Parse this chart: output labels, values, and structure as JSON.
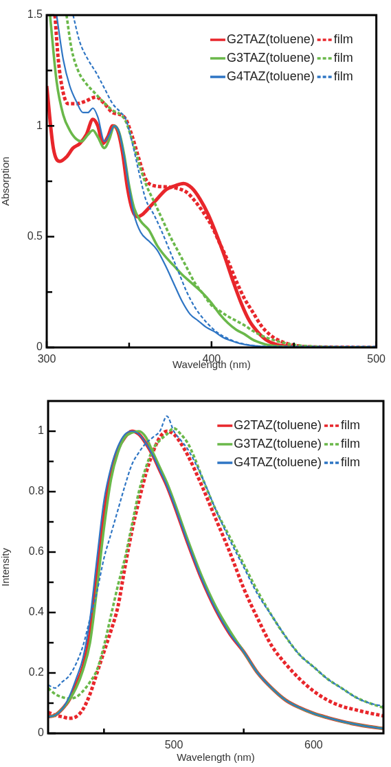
{
  "chart_data": [
    {
      "type": "line",
      "xlabel": "Wavelength (nm)",
      "ylabel": "Absorption",
      "xlim": [
        300,
        500
      ],
      "ylim": [
        0,
        1.5
      ],
      "xticks": [
        300,
        {
          "value": 350,
          "label": null
        },
        400,
        {
          "value": 450,
          "label": null
        },
        500
      ],
      "yticks": [
        0,
        {
          "value": 0.25,
          "label": null
        },
        0.5,
        {
          "value": 0.75,
          "label": null
        },
        1,
        {
          "value": 1.25,
          "label": null
        },
        1.5
      ],
      "legend": "top right",
      "series": [
        {
          "name": "G2TAZ(toluene)",
          "color": "#e8262b",
          "line_style": "solid",
          "x": [
            300,
            304,
            308,
            312,
            316,
            320,
            324,
            328,
            331,
            334,
            337,
            340,
            343,
            346,
            349,
            352,
            355,
            358,
            362,
            367,
            372,
            378,
            383,
            388,
            393,
            398,
            403,
            408,
            413,
            418,
            423,
            428,
            433,
            440,
            450
          ],
          "values": [
            1.18,
            0.9,
            0.84,
            0.86,
            0.9,
            0.92,
            0.96,
            1.03,
            1.0,
            0.92,
            0.95,
            1.0,
            0.98,
            0.88,
            0.72,
            0.62,
            0.59,
            0.6,
            0.63,
            0.67,
            0.71,
            0.73,
            0.74,
            0.72,
            0.67,
            0.6,
            0.51,
            0.41,
            0.3,
            0.2,
            0.12,
            0.07,
            0.035,
            0.012,
            0.003
          ]
        },
        {
          "name": "film",
          "color": "#e8262b",
          "line_style": "dashed",
          "x": [
            305,
            307,
            310,
            313,
            318,
            323,
            330,
            335,
            340,
            345,
            348,
            352,
            356,
            360,
            365,
            372,
            378,
            385,
            390,
            395,
            400,
            405,
            410,
            415,
            420,
            425,
            430,
            435,
            440,
            450,
            460,
            500
          ],
          "values": [
            1.5,
            1.3,
            1.15,
            1.1,
            1.1,
            1.11,
            1.13,
            1.1,
            1.06,
            1.05,
            1.03,
            0.95,
            0.85,
            0.76,
            0.73,
            0.725,
            0.72,
            0.7,
            0.66,
            0.61,
            0.55,
            0.47,
            0.39,
            0.3,
            0.22,
            0.16,
            0.1,
            0.06,
            0.035,
            0.01,
            0.003,
            0
          ]
        },
        {
          "name": "G3TAZ(toluene)",
          "color": "#6ab84a",
          "line_style": "solid",
          "x": [
            302,
            306,
            310,
            314,
            318,
            321,
            325,
            328,
            331,
            335,
            338,
            341,
            344,
            347,
            350,
            353,
            357,
            362,
            367,
            372,
            377,
            382,
            388,
            394,
            400,
            405,
            410,
            415,
            420,
            425,
            430,
            435,
            445,
            500
          ],
          "values": [
            1.5,
            1.2,
            1.05,
            0.98,
            0.94,
            0.93,
            0.96,
            0.98,
            0.95,
            0.9,
            0.94,
            1.0,
            0.97,
            0.87,
            0.73,
            0.63,
            0.57,
            0.53,
            0.46,
            0.41,
            0.37,
            0.33,
            0.29,
            0.25,
            0.2,
            0.15,
            0.11,
            0.08,
            0.06,
            0.035,
            0.02,
            0.01,
            0.003,
            0
          ]
        },
        {
          "name": "film",
          "color": "#6ab84a",
          "line_style": "dashed",
          "x": [
            312,
            315,
            319,
            324,
            329,
            334,
            340,
            345,
            348,
            352,
            356,
            360,
            365,
            370,
            375,
            380,
            385,
            390,
            395,
            400,
            405,
            410,
            415,
            420,
            425,
            430,
            435,
            440,
            450,
            460,
            470,
            500
          ],
          "values": [
            1.5,
            1.35,
            1.25,
            1.19,
            1.15,
            1.11,
            1.07,
            1.05,
            1.02,
            0.93,
            0.83,
            0.74,
            0.66,
            0.58,
            0.5,
            0.43,
            0.36,
            0.29,
            0.24,
            0.19,
            0.165,
            0.14,
            0.12,
            0.1,
            0.075,
            0.055,
            0.04,
            0.028,
            0.012,
            0.005,
            0.002,
            0
          ]
        },
        {
          "name": "G4TAZ(toluene)",
          "color": "#2e75c4",
          "line_style": "solid",
          "x": [
            306,
            310,
            314,
            318,
            322,
            325,
            328,
            331,
            335,
            338,
            341,
            344,
            347,
            350,
            353,
            357,
            362,
            367,
            372,
            377,
            382,
            387,
            392,
            397,
            402,
            407,
            412,
            417,
            425,
            435,
            450,
            500
          ],
          "values": [
            1.5,
            1.3,
            1.18,
            1.11,
            1.06,
            1.06,
            1.08,
            1.04,
            0.93,
            0.96,
            1.0,
            0.97,
            0.86,
            0.72,
            0.6,
            0.52,
            0.48,
            0.44,
            0.37,
            0.29,
            0.21,
            0.15,
            0.12,
            0.09,
            0.07,
            0.045,
            0.03,
            0.018,
            0.008,
            0.002,
            0,
            0
          ]
        },
        {
          "name": "film",
          "color": "#2e75c4",
          "line_style": "dashed",
          "x": [
            316,
            320,
            325,
            330,
            335,
            340,
            345,
            348,
            352,
            356,
            360,
            365,
            370,
            375,
            380,
            385,
            390,
            395,
            400,
            405,
            410,
            415,
            420,
            430,
            440,
            500
          ],
          "values": [
            1.5,
            1.38,
            1.3,
            1.24,
            1.17,
            1.1,
            1.06,
            1.03,
            0.92,
            0.79,
            0.67,
            0.6,
            0.52,
            0.43,
            0.34,
            0.25,
            0.18,
            0.13,
            0.09,
            0.06,
            0.04,
            0.025,
            0.015,
            0.005,
            0.004,
            0.004
          ]
        }
      ]
    },
    {
      "type": "line",
      "xlabel": "Wavelength (nm)",
      "ylabel": "Intensity",
      "xlim": [
        410,
        650
      ],
      "ylim": [
        0,
        1.1
      ],
      "xticks": [
        {
          "value": 450,
          "label": null
        },
        500,
        {
          "value": 550,
          "label": null
        },
        600
      ],
      "yticks": [
        0,
        {
          "value": 0.1,
          "label": null
        },
        0.2,
        {
          "value": 0.3,
          "label": null
        },
        0.4,
        {
          "value": 0.5,
          "label": null
        },
        0.6,
        {
          "value": 0.7,
          "label": null
        },
        0.8,
        {
          "value": 0.9,
          "label": null
        },
        1
      ],
      "legend": "top right",
      "series": [
        {
          "name": "G2TAZ(toluene)",
          "color": "#e8262b",
          "line_style": "solid",
          "x": [
            410,
            415,
            420,
            425,
            430,
            435,
            440,
            445,
            450,
            455,
            460,
            465,
            470,
            475,
            480,
            485,
            490,
            495,
            500,
            510,
            520,
            530,
            540,
            550,
            560,
            570,
            580,
            590,
            600,
            610,
            620,
            630,
            640,
            650
          ],
          "values": [
            0.055,
            0.06,
            0.08,
            0.11,
            0.16,
            0.22,
            0.33,
            0.52,
            0.72,
            0.86,
            0.94,
            0.98,
            1.0,
            0.99,
            0.96,
            0.92,
            0.87,
            0.82,
            0.76,
            0.63,
            0.51,
            0.41,
            0.33,
            0.27,
            0.2,
            0.15,
            0.11,
            0.085,
            0.066,
            0.052,
            0.04,
            0.03,
            0.022,
            0.016
          ]
        },
        {
          "name": "film",
          "color": "#e8262b",
          "line_style": "dashed",
          "x": [
            410,
            415,
            420,
            425,
            430,
            435,
            440,
            445,
            450,
            455,
            460,
            465,
            470,
            475,
            480,
            485,
            490,
            495,
            500,
            505,
            510,
            520,
            530,
            540,
            550,
            560,
            570,
            580,
            590,
            600,
            610,
            620,
            630,
            640,
            650
          ],
          "values": [
            0.07,
            0.06,
            0.055,
            0.05,
            0.055,
            0.08,
            0.13,
            0.2,
            0.27,
            0.34,
            0.42,
            0.55,
            0.67,
            0.77,
            0.86,
            0.93,
            0.98,
            1.0,
            0.99,
            0.96,
            0.92,
            0.82,
            0.71,
            0.6,
            0.48,
            0.38,
            0.29,
            0.23,
            0.18,
            0.14,
            0.11,
            0.09,
            0.078,
            0.067,
            0.058
          ]
        },
        {
          "name": "G3TAZ(toluene)",
          "color": "#6ab84a",
          "line_style": "solid",
          "x": [
            410,
            415,
            420,
            425,
            430,
            435,
            440,
            445,
            450,
            455,
            460,
            465,
            470,
            475,
            480,
            485,
            490,
            495,
            500,
            510,
            520,
            530,
            540,
            550,
            560,
            570,
            580,
            590,
            600,
            610,
            620,
            630,
            640,
            650
          ],
          "values": [
            0.055,
            0.06,
            0.08,
            0.11,
            0.15,
            0.21,
            0.3,
            0.48,
            0.68,
            0.84,
            0.93,
            0.98,
            0.995,
            1.0,
            0.98,
            0.93,
            0.88,
            0.83,
            0.77,
            0.64,
            0.52,
            0.42,
            0.34,
            0.27,
            0.2,
            0.15,
            0.11,
            0.085,
            0.066,
            0.052,
            0.04,
            0.03,
            0.022,
            0.016
          ]
        },
        {
          "name": "film",
          "color": "#6ab84a",
          "line_style": "dashed",
          "x": [
            410,
            415,
            420,
            425,
            430,
            435,
            440,
            445,
            450,
            455,
            460,
            465,
            470,
            475,
            480,
            485,
            490,
            495,
            500,
            505,
            510,
            515,
            520,
            530,
            540,
            550,
            560,
            570,
            580,
            590,
            600,
            610,
            620,
            630,
            640,
            650
          ],
          "values": [
            0.15,
            0.13,
            0.12,
            0.115,
            0.12,
            0.14,
            0.17,
            0.21,
            0.29,
            0.39,
            0.49,
            0.58,
            0.69,
            0.8,
            0.88,
            0.94,
            0.97,
            0.99,
            1.01,
            0.99,
            0.96,
            0.91,
            0.85,
            0.74,
            0.65,
            0.56,
            0.47,
            0.39,
            0.32,
            0.26,
            0.22,
            0.18,
            0.15,
            0.12,
            0.1,
            0.085
          ]
        },
        {
          "name": "G4TAZ(toluene)",
          "color": "#2e75c4",
          "line_style": "solid",
          "x": [
            410,
            415,
            420,
            425,
            430,
            435,
            440,
            445,
            450,
            455,
            460,
            465,
            470,
            475,
            480,
            485,
            490,
            495,
            500,
            510,
            520,
            530,
            540,
            550,
            560,
            570,
            580,
            590,
            600,
            610,
            620,
            630,
            640,
            650
          ],
          "values": [
            0.055,
            0.06,
            0.08,
            0.12,
            0.18,
            0.25,
            0.38,
            0.58,
            0.77,
            0.88,
            0.95,
            0.99,
            1.0,
            0.99,
            0.96,
            0.92,
            0.87,
            0.82,
            0.76,
            0.63,
            0.51,
            0.41,
            0.33,
            0.27,
            0.2,
            0.15,
            0.11,
            0.085,
            0.066,
            0.052,
            0.04,
            0.03,
            0.022,
            0.016
          ]
        },
        {
          "name": "film",
          "color": "#2e75c4",
          "line_style": "dashed",
          "x": [
            410,
            415,
            420,
            425,
            430,
            435,
            440,
            445,
            450,
            455,
            460,
            465,
            470,
            475,
            480,
            485,
            490,
            495,
            500,
            505,
            510,
            520,
            530,
            540,
            550,
            560,
            570,
            580,
            590,
            600,
            610,
            620,
            630,
            640,
            650
          ],
          "values": [
            0.16,
            0.15,
            0.17,
            0.19,
            0.23,
            0.29,
            0.38,
            0.47,
            0.58,
            0.66,
            0.74,
            0.82,
            0.89,
            0.93,
            0.96,
            0.98,
            1.0,
            1.05,
            1.0,
            0.97,
            0.94,
            0.85,
            0.74,
            0.64,
            0.55,
            0.46,
            0.39,
            0.32,
            0.26,
            0.22,
            0.18,
            0.15,
            0.12,
            0.1,
            0.09
          ]
        }
      ]
    }
  ]
}
